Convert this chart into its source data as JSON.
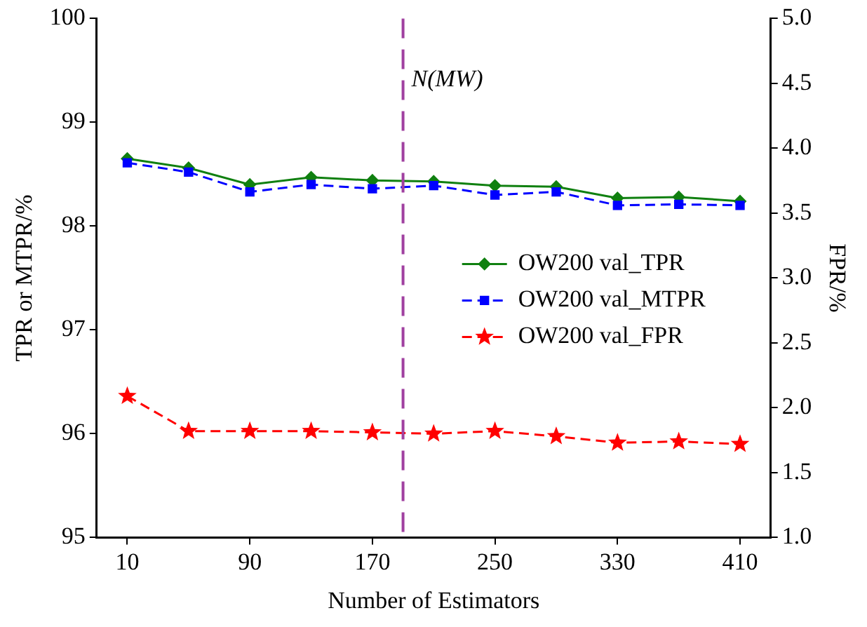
{
  "chart_data": {
    "type": "line",
    "xlabel": "Number of Estimators",
    "ylabel": "TPR or MTPR/%",
    "y2label": "FPR/%",
    "x": [
      10,
      50,
      90,
      130,
      170,
      210,
      250,
      290,
      330,
      370,
      410
    ],
    "xlim": [
      -10,
      430
    ],
    "xticks": [
      10,
      90,
      170,
      250,
      330,
      410
    ],
    "ylim": [
      95,
      100
    ],
    "yticks": [
      95,
      96,
      97,
      98,
      99,
      100
    ],
    "y2lim": [
      1.0,
      5.0
    ],
    "y2ticks": [
      {
        "value": 1.0,
        "label": "1.0"
      },
      {
        "value": 1.5,
        "label": "1.5"
      },
      {
        "value": 2.0,
        "label": "2.0"
      },
      {
        "value": 2.5,
        "label": "2.5"
      },
      {
        "value": 3.0,
        "label": "3.0"
      },
      {
        "value": 3.5,
        "label": "3.5"
      },
      {
        "value": 4.0,
        "label": "4.0"
      },
      {
        "value": 4.5,
        "label": "4.5"
      },
      {
        "value": 5.0,
        "label": "5.0"
      }
    ],
    "series": [
      {
        "name": "OW200 val_TPR",
        "color": "#108010",
        "marker": "diamond",
        "line_style": "solid",
        "values": [
          98.65,
          98.56,
          98.4,
          98.47,
          98.44,
          98.43,
          98.39,
          98.38,
          98.27,
          98.28,
          98.24
        ]
      },
      {
        "name": "OW200 val_MTPR",
        "color": "#0000ff",
        "marker": "square",
        "line_style": "dashed",
        "values": [
          98.61,
          98.52,
          98.33,
          98.4,
          98.36,
          98.39,
          98.3,
          98.33,
          98.2,
          98.21,
          98.2
        ]
      },
      {
        "name": "OW200 val_FPR",
        "color": "#ff0000",
        "marker": "star",
        "line_style": "dashed",
        "axis": "y2",
        "values": [
          2.09,
          1.82,
          1.82,
          1.82,
          1.81,
          1.8,
          1.82,
          1.78,
          1.73,
          1.74,
          1.72
        ]
      }
    ],
    "ref_lines": [
      {
        "axis": "x",
        "value": 190,
        "label": "N(MW)",
        "color": "#a040a0",
        "line_style": "dashed"
      }
    ],
    "legend": "right",
    "grid": false
  }
}
